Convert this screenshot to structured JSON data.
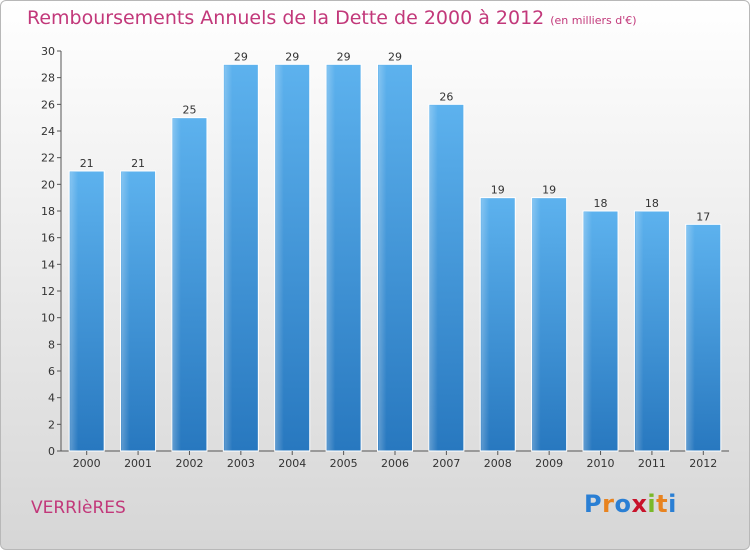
{
  "chart_data": {
    "type": "bar",
    "title": "Remboursements Annuels de la Dette de 2000 à 2012",
    "subtitle": "(en milliers d'€)",
    "categories": [
      "2000",
      "2001",
      "2002",
      "2003",
      "2004",
      "2005",
      "2006",
      "2007",
      "2008",
      "2009",
      "2010",
      "2011",
      "2012"
    ],
    "values": [
      21,
      21,
      25,
      29,
      29,
      29,
      29,
      26,
      19,
      19,
      18,
      18,
      17
    ],
    "ylim": [
      0,
      30
    ],
    "yticks": [
      0,
      2,
      4,
      6,
      8,
      10,
      12,
      14,
      16,
      18,
      20,
      22,
      24,
      26,
      28,
      30
    ],
    "grid": false,
    "bar_color": "#4a9fe0"
  },
  "footer": {
    "place": "VERRIèRES",
    "logo": [
      "P",
      "r",
      "o",
      "x",
      "i",
      "t",
      "i"
    ],
    "logo_colors": [
      "#2a7fd4",
      "#e8831f",
      "#2a7fd4",
      "#c8122a",
      "#7ab829",
      "#e8831f",
      "#2a7fd4"
    ]
  }
}
